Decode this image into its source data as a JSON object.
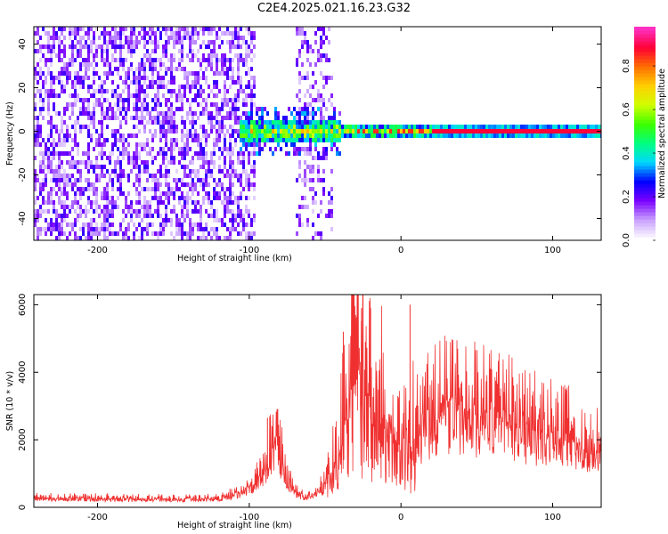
{
  "title": "C2E4.2025.021.16.23.G32",
  "chart_data": [
    {
      "type": "heatmap",
      "name": "spectrogram",
      "xlabel": "Height of straight line (km)",
      "ylabel": "Frequency (Hz)",
      "xlim": [
        -242,
        132
      ],
      "ylim": [
        -50,
        48
      ],
      "x_ticks": [
        -200,
        -100,
        0,
        100
      ],
      "y_ticks": [
        40,
        20,
        0,
        -20,
        -40
      ],
      "colorbar": {
        "label": "Normalized spectral amplitude",
        "range": [
          0,
          0.98
        ],
        "ticks": [
          "0.0",
          "0.2",
          "0.4",
          "0.6",
          "0.8"
        ],
        "tick_values": [
          0,
          0.2,
          0.4,
          0.6,
          0.8
        ],
        "colors": [
          "#ffffff",
          "#c8a0ff",
          "#7a00ff",
          "#0000ff",
          "#00d8ff",
          "#00ff80",
          "#3cff00",
          "#d0ff00",
          "#ffd000",
          "#ff7000",
          "#ff0033",
          "#ff30c0"
        ]
      },
      "regions": [
        {
          "x": [
            -242,
            -96
          ],
          "y": [
            -50,
            48
          ],
          "level": 0.05,
          "description_level": "noise"
        },
        {
          "x": [
            -70,
            -46
          ],
          "y": [
            -50,
            48
          ],
          "level": 0.04
        },
        {
          "x": [
            -106,
            132
          ],
          "y": [
            -2,
            5
          ],
          "level": 0.35
        },
        {
          "x": [
            20,
            132
          ],
          "y": [
            -1,
            2
          ],
          "level": 0.9
        }
      ]
    },
    {
      "type": "line",
      "name": "snr",
      "xlabel": "Height of straight line (km)",
      "ylabel": "SNR (10 * v/v)",
      "xlim": [
        -242,
        132
      ],
      "ylim": [
        0,
        6300
      ],
      "x_ticks": [
        -200,
        -100,
        0,
        100
      ],
      "y_ticks": [
        0,
        2000,
        4000,
        6000
      ],
      "color": "#f03030",
      "envelope": {
        "x": [
          -242,
          -200,
          -150,
          -120,
          -105,
          -95,
          -88,
          -84,
          -80,
          -76,
          -72,
          -68,
          -64,
          -58,
          -52,
          -46,
          -40,
          -36,
          -32,
          -28,
          -22,
          -16,
          -10,
          -4,
          0,
          6,
          14,
          22,
          30,
          40,
          50,
          60,
          70,
          80,
          90,
          100,
          110,
          120,
          132
        ],
        "y": [
          300,
          290,
          270,
          280,
          500,
          900,
          1400,
          2400,
          1800,
          1100,
          700,
          450,
          380,
          420,
          650,
          1200,
          2000,
          3200,
          4400,
          5200,
          4600,
          3800,
          3000,
          2600,
          2300,
          2400,
          2800,
          3200,
          3400,
          3350,
          3250,
          3150,
          3000,
          2850,
          2700,
          2500,
          2350,
          2150,
          2000
        ]
      },
      "peaks": [
        {
          "x": -32,
          "y": 6300
        },
        {
          "x": -26,
          "y": 5900
        },
        {
          "x": -20,
          "y": 5900
        },
        {
          "x": 6,
          "y": 6000
        },
        {
          "x": -38,
          "y": 5200
        },
        {
          "x": -86,
          "y": 2400
        },
        {
          "x": -88,
          "y": 2650
        }
      ]
    }
  ]
}
